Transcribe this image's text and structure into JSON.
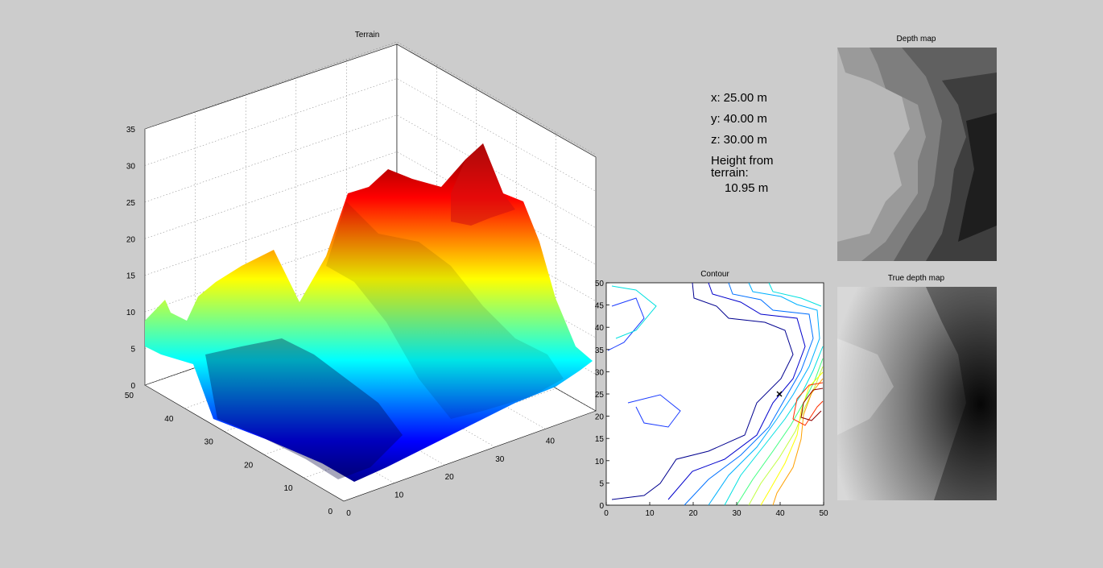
{
  "window": {
    "background": "#cccccc"
  },
  "readout": {
    "x_label": "x:",
    "x_value": "25.00 m",
    "y_label": "y:",
    "y_value": "40.00 m",
    "z_label": "z:",
    "z_value": "30.00 m",
    "height_label_line1": "Height from",
    "height_label_line2": "terrain:",
    "height_value": "10.95 m"
  },
  "chart_data": [
    {
      "type": "surface",
      "title": "Terrain",
      "colormap": "jet",
      "xlim": [
        0,
        50
      ],
      "ylim": [
        0,
        50
      ],
      "zlim": [
        0,
        35
      ],
      "xticks": [
        "0",
        "10",
        "20",
        "30",
        "40"
      ],
      "yticks": [
        "0",
        "10",
        "20",
        "30",
        "40",
        "50"
      ],
      "zticks": [
        "0",
        "5",
        "10",
        "15",
        "20",
        "25",
        "30",
        "35"
      ],
      "grid": true,
      "view": "perspective from x=0,y=50 corner",
      "peak": {
        "x": 48,
        "y": 25,
        "z": 32
      }
    },
    {
      "type": "contour",
      "title": "Contour",
      "colormap": "jet",
      "xlim": [
        0,
        50
      ],
      "ylim": [
        0,
        50
      ],
      "xticks": [
        "0",
        "10",
        "20",
        "30",
        "40",
        "50"
      ],
      "yticks": [
        "0",
        "5",
        "10",
        "15",
        "20",
        "25",
        "30",
        "35",
        "40",
        "45",
        "50"
      ],
      "marker": {
        "x": 40,
        "y": 25,
        "symbol": "x"
      }
    },
    {
      "type": "heatmap",
      "title": "Depth map",
      "colormap": "gray",
      "style": "quantized"
    },
    {
      "type": "heatmap",
      "title": "True depth map",
      "colormap": "gray",
      "style": "continuous"
    }
  ]
}
